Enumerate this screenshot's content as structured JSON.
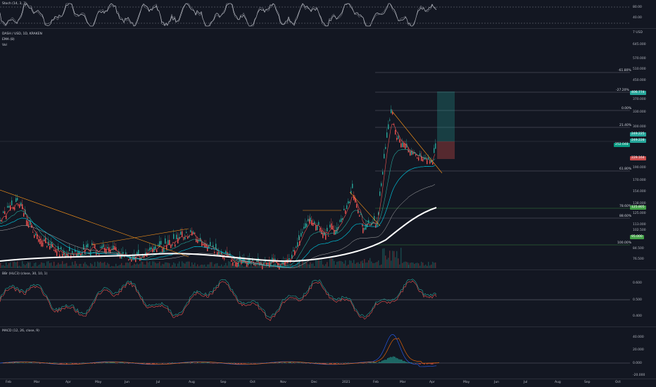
{
  "panels": {
    "stoch": {
      "title": "Stoch (14, 3, 3)",
      "axis": [
        "80.00",
        "40.00"
      ]
    },
    "price": {
      "symbol": "DASH / USD, 1D, KRAKEN",
      "ema_label": "EMA (8)",
      "vol_label": "Vol",
      "axis": [
        "7 USD",
        "645.000",
        "570.000",
        "510.000",
        "450.000",
        "370.000",
        "330.000",
        "300.000",
        "270.000",
        "190.000",
        "170.000",
        "154.000",
        "138.000",
        "125.000",
        "113.000",
        "102.500",
        "93.000",
        "84.500",
        "76.500"
      ],
      "fib_levels": [
        "-61.80%",
        "-27.20%",
        "0.00%",
        "21.40%",
        "61.80%",
        "78.60%",
        "88.60%",
        "100.00%"
      ],
      "price_tags": [
        "406.774",
        "249.225",
        "249.228",
        "252.048",
        "229.164",
        "125.805",
        "95.000"
      ]
    },
    "bbr": {
      "title": "BBr (HLC3) (close, 30, 10, 1)",
      "axis": [
        "0.600",
        "0.500",
        "0.400"
      ]
    },
    "macd": {
      "title": "MACD (12, 26, close, 9)",
      "axis": [
        "40.000",
        "20.000",
        "0.000",
        "-20.000"
      ]
    }
  },
  "months": [
    "Feb",
    "Mar",
    "Apr",
    "May",
    "Jun",
    "Jul",
    "Aug",
    "Sep",
    "Oct",
    "Nov",
    "Dec",
    "2021",
    "Feb",
    "Mar",
    "Apr",
    "May",
    "Jun",
    "Jul",
    "Aug",
    "Sep",
    "Oct"
  ],
  "colors": {
    "bg": "#131722",
    "up": "#26a69a",
    "down": "#ef5350",
    "ema200": "#ffffff",
    "trend": "#f7931a"
  }
}
